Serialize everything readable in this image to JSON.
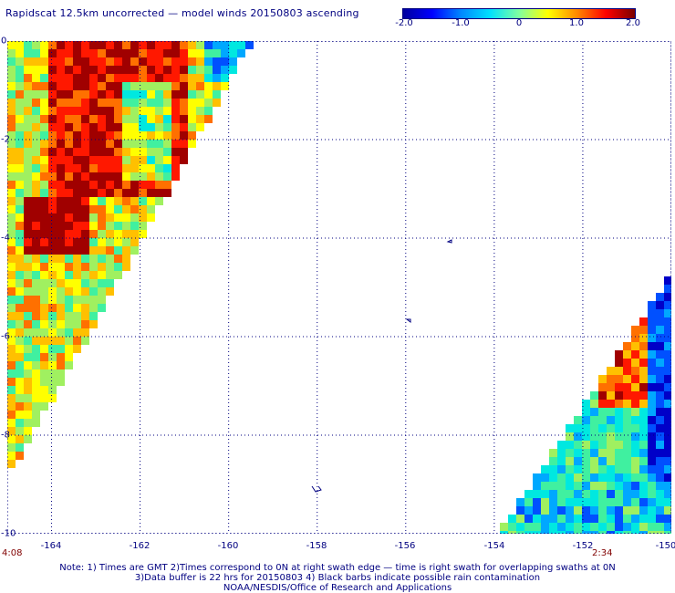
{
  "title": "Rapidscat 12.5km uncorrected — model winds 20150803 ascending",
  "colorbar": {
    "labels": [
      "-2.0",
      "-1.0",
      "0",
      "1.0",
      "2.0"
    ],
    "colors": [
      "#00009e",
      "#0000ff",
      "#0088ff",
      "#00e0ff",
      "#80ffa0",
      "#ffff00",
      "#ff8800",
      "#ff0000",
      "#7a0000"
    ],
    "range": [
      -2.0,
      2.0
    ]
  },
  "map": {
    "lon_range": [
      -165.0,
      -150.0
    ],
    "lat_range": [
      0,
      -10
    ],
    "lon_ticks": [
      "-164",
      "-162",
      "-160",
      "-158",
      "-156",
      "-154",
      "-152",
      "-150"
    ],
    "lat_ticks": [
      "0",
      "-2",
      "-4",
      "-6",
      "-8",
      "-10"
    ],
    "pass_times": [
      "4:08",
      "2:34"
    ],
    "grid": true
  },
  "notes": [
    "Note: 1) Times are GMT 2)Times correspond to 0N at right swath edge — time is right swath for overlapping swaths at 0N",
    "3)Data buffer is 22 hrs for 20150803 4) Black barbs indicate possible rain contamination",
    "NOAA/NESDIS/Office of Research and Applications"
  ]
}
